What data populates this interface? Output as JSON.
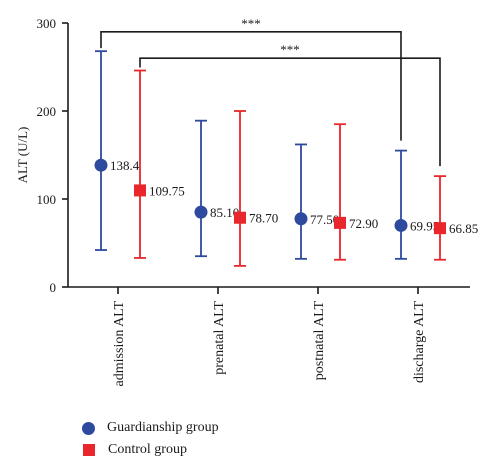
{
  "chart_data": {
    "type": "scatter",
    "ylabel": "ALT (U/L)",
    "ylim": [
      0,
      300
    ],
    "yticks": [
      0,
      100,
      200,
      300
    ],
    "categories": [
      "admission ALT",
      "prenatal ALT",
      "postnatal ALT",
      "discharge ALT"
    ],
    "series": [
      {
        "name": "Guardianship group",
        "marker": "circle",
        "color": "#2e4a9e",
        "values": [
          138.4,
          85.1,
          77.5,
          69.95
        ],
        "labels": [
          "138.4",
          "85.10",
          "77.50",
          "69.95"
        ],
        "upper": [
          268,
          189,
          162,
          155
        ],
        "lower": [
          42,
          35,
          32,
          32
        ]
      },
      {
        "name": "Control group",
        "marker": "square",
        "color": "#e8262b",
        "values": [
          109.75,
          78.7,
          72.9,
          66.85
        ],
        "labels": [
          "109.75",
          "78.70",
          "72.90",
          "66.85"
        ],
        "upper": [
          246,
          200,
          185,
          126
        ],
        "lower": [
          33,
          24,
          31,
          31
        ]
      }
    ],
    "annotations": [
      {
        "text": "***",
        "from_series": 0,
        "from_category": 0,
        "to_series": 0,
        "to_category": 3,
        "y": 290
      },
      {
        "text": "***",
        "from_series": 1,
        "from_category": 0,
        "to_series": 1,
        "to_category": 3,
        "y": 260
      }
    ]
  }
}
